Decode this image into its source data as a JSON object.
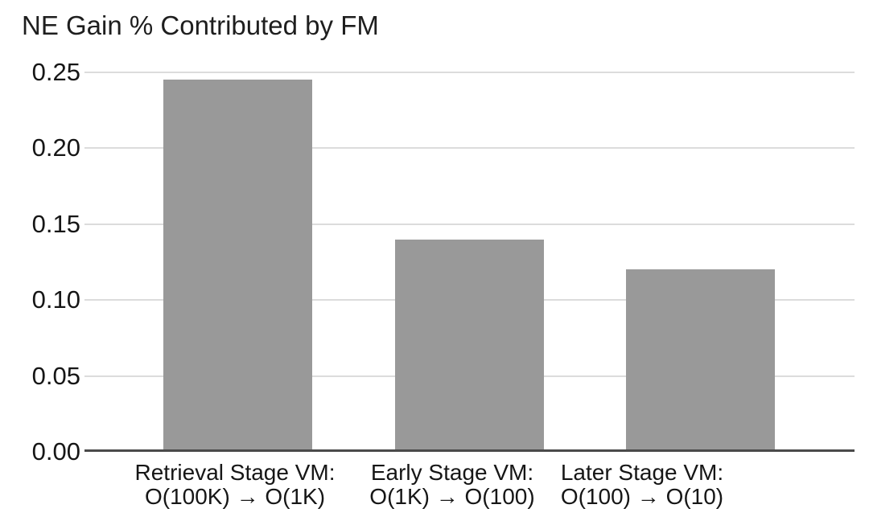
{
  "chart_data": {
    "type": "bar",
    "title": "NE Gain % Contributed by FM",
    "categories": [
      {
        "line1": "Retrieval Stage VM:",
        "line2": "O(100K) → O(1K)"
      },
      {
        "line1": "Early Stage VM:",
        "line2": "O(1K) → O(100)"
      },
      {
        "line1": "Later Stage VM:",
        "line2": "O(100) → O(10)"
      }
    ],
    "values": [
      0.245,
      0.14,
      0.12
    ],
    "xlabel": "",
    "ylabel": "",
    "ylim": [
      0,
      0.25
    ],
    "ytick_step": 0.05,
    "yticks": [
      "0.25",
      "0.20",
      "0.15",
      "0.10",
      "0.05",
      "0.00"
    ],
    "grid": "horizontal-only",
    "legend": "none",
    "colors": {
      "bar": "#999999",
      "gridline": "#dcdcdc",
      "axis_line": "#4a4a4a",
      "text": "#161616",
      "background": "#ffffff"
    }
  }
}
